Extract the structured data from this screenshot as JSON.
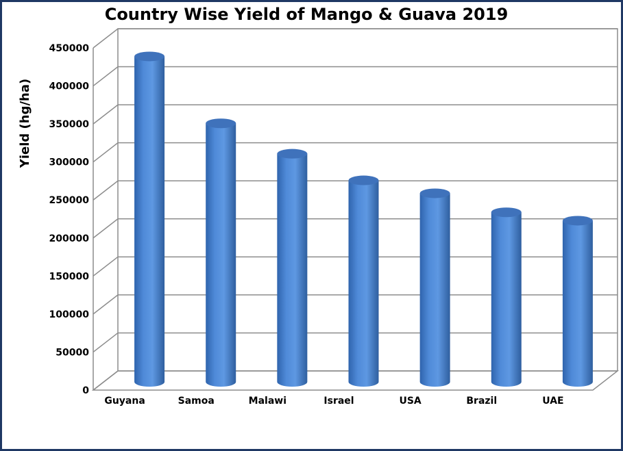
{
  "chart_data": {
    "type": "bar",
    "title": "Country Wise Yield of Mango & Guava 2019",
    "xlabel": "",
    "ylabel": "Yield (hg/ha)",
    "categories": [
      "Guyana",
      "Samoa",
      "Malawi",
      "Israel",
      "USA",
      "Brazil",
      "UAE"
    ],
    "values": [
      428000,
      340000,
      300000,
      265000,
      248000,
      223000,
      212000
    ],
    "ylim": [
      0,
      450000
    ],
    "yticks": [
      0,
      50000,
      100000,
      150000,
      200000,
      250000,
      300000,
      350000,
      400000,
      450000
    ],
    "grid": true,
    "legend": "none",
    "style": "3d-cylinder",
    "bar_color": "#4a86d4"
  }
}
